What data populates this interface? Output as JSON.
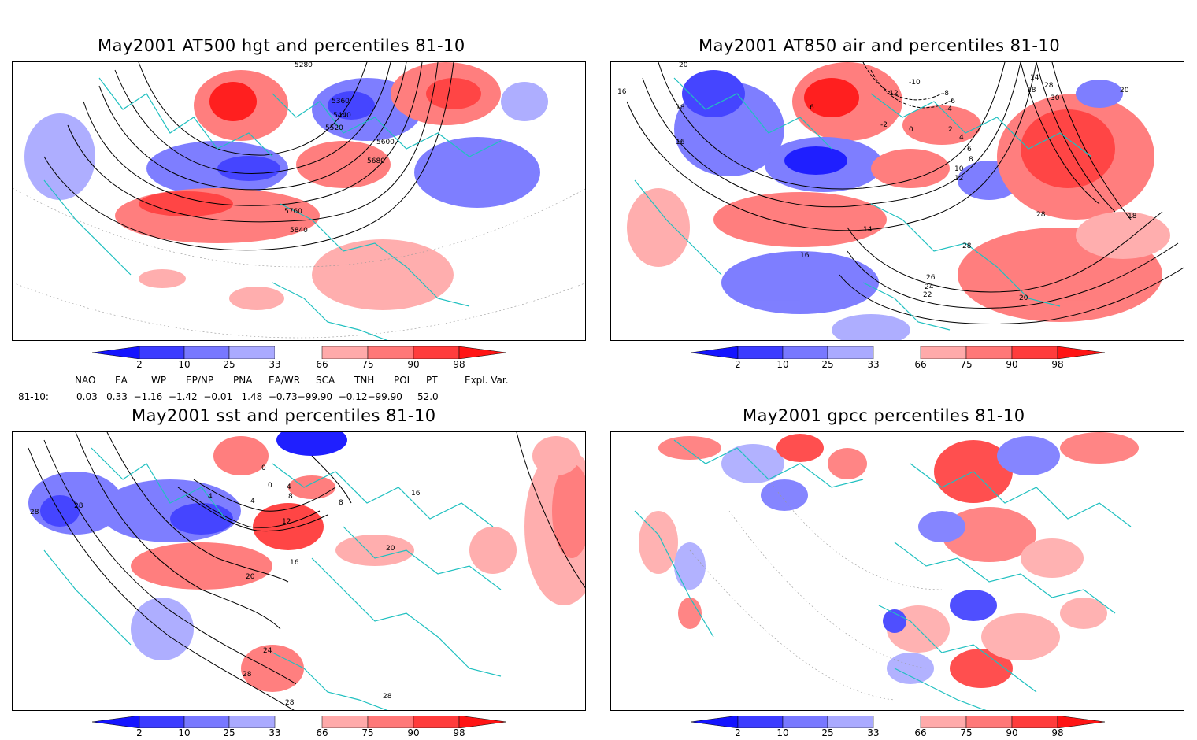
{
  "panels": [
    {
      "id": "hgt",
      "title": "May2001 AT500 hgt and percentiles 81-10",
      "contour_labels": [
        "5280",
        "5360",
        "5440",
        "5520",
        "5600",
        "5680",
        "5760",
        "5840"
      ]
    },
    {
      "id": "air",
      "title": "May2001 AT850 air and percentiles 81-10",
      "contour_labels": [
        "20",
        "16",
        "18",
        "16",
        "6",
        "-2",
        "0",
        "2",
        "4",
        "6",
        "8",
        "10",
        "12",
        "14",
        "16",
        "-12",
        "-10",
        "-8",
        "-6",
        "-4",
        "14",
        "18",
        "28",
        "30",
        "20",
        "28",
        "28",
        "26",
        "24",
        "22",
        "20",
        "18"
      ]
    },
    {
      "id": "sst",
      "title": "May2001 sst and percentiles 81-10",
      "contour_labels": [
        "28",
        "28",
        "0",
        "4",
        "4",
        "0",
        "4",
        "8",
        "8",
        "12",
        "16",
        "16",
        "20",
        "20",
        "24",
        "28",
        "28",
        "28"
      ]
    },
    {
      "id": "gpcc",
      "title": "May2001 gpcc percentiles 81-10",
      "contour_labels": []
    }
  ],
  "colorbar": {
    "labels": [
      "2",
      "10",
      "25",
      "33",
      "66",
      "75",
      "90",
      "98"
    ],
    "colors": {
      "b1": "#1414ff",
      "b2": "#3c3cff",
      "b3": "#7878ff",
      "b4": "#aaaaff",
      "r1": "#ffaaaa",
      "r2": "#ff7878",
      "r3": "#ff3c3c",
      "r4": "#ff1414"
    }
  },
  "indices": {
    "headers": [
      "NAO",
      "EA",
      "WP",
      "EP/NP",
      "PNA",
      "EA/WR",
      "SCA",
      "TNH",
      "POL",
      "PT",
      "Expl. Var."
    ],
    "row_label": "81-10:",
    "values_text": "0.03   0.33  −1.16  −1.42  −0.01   1.48  −0.73−99.90  −0.12−99.90     52.0"
  }
}
